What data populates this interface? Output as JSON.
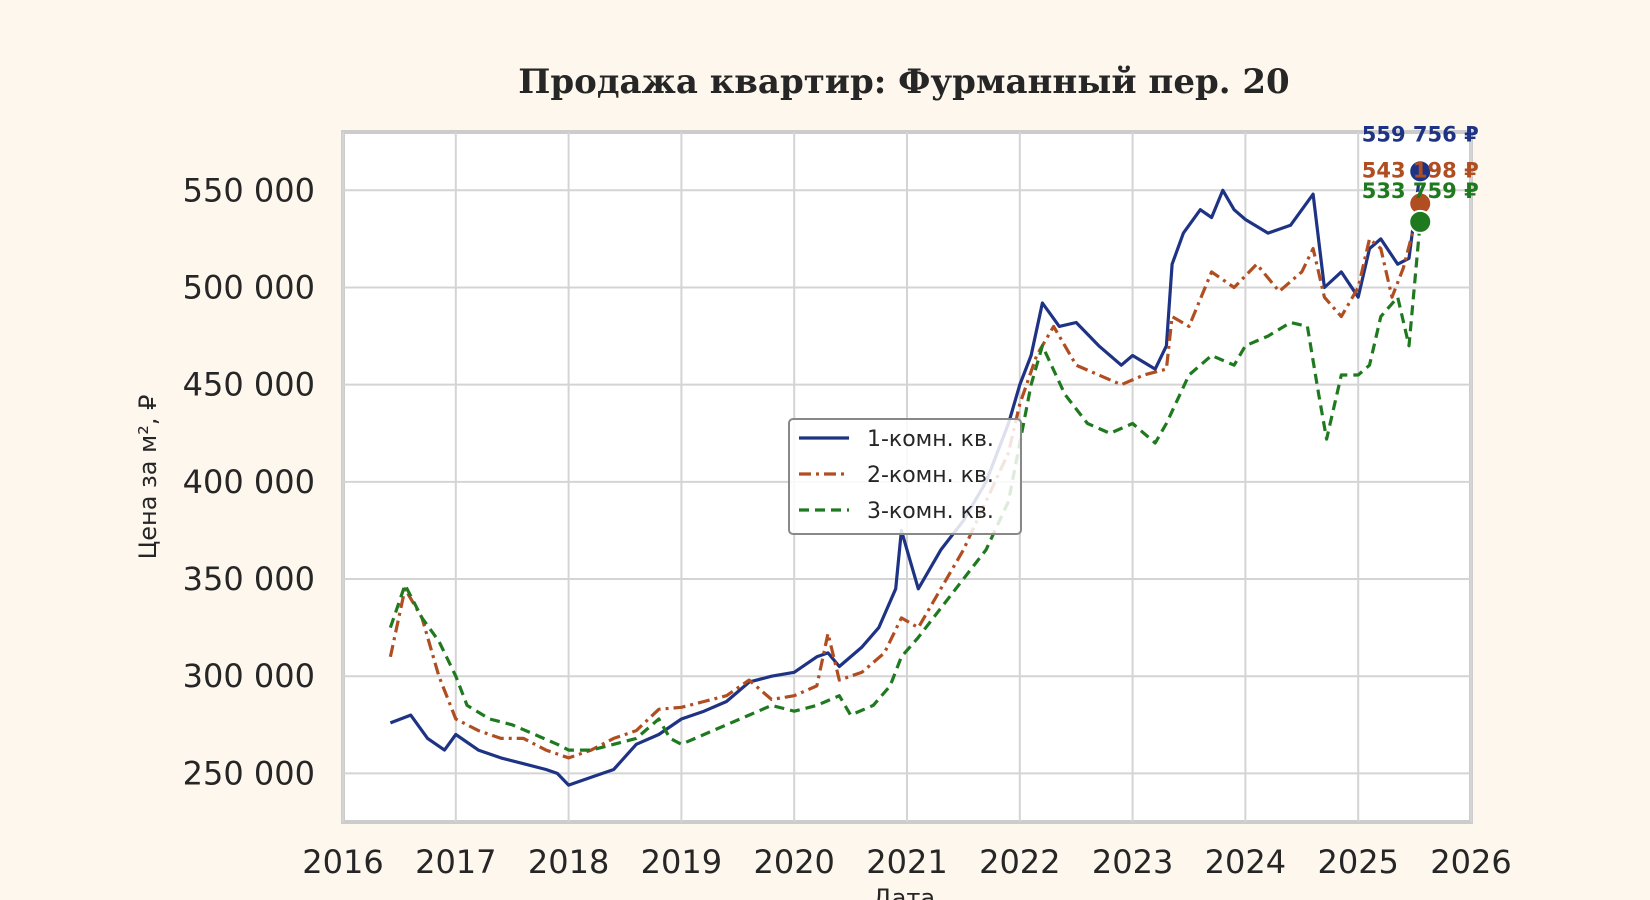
{
  "chart_data": {
    "type": "line",
    "title": "Продажа квартир: Фурманный пер. 20",
    "xlabel": "Дата",
    "ylabel": "Цена за м², ₽",
    "xlim": [
      2016.0,
      2026.0
    ],
    "ylim": [
      225000,
      580000
    ],
    "x_ticks": [
      2016,
      2017,
      2018,
      2019,
      2020,
      2021,
      2022,
      2023,
      2024,
      2025,
      2026
    ],
    "y_ticks": [
      250000,
      300000,
      350000,
      400000,
      450000,
      500000,
      550000
    ],
    "y_tick_labels": [
      "250 000",
      "300 000",
      "350 000",
      "400 000",
      "450 000",
      "500 000",
      "550 000"
    ],
    "grid": true,
    "legend_position": "center",
    "series": [
      {
        "name": "1-комн. кв.",
        "color": "#1f3385",
        "dash": "solid",
        "end_value": 559756,
        "end_label": "559 756 ₽",
        "x": [
          2016.42,
          2016.6,
          2016.75,
          2016.9,
          2017.0,
          2017.2,
          2017.4,
          2017.6,
          2017.8,
          2017.9,
          2018.0,
          2018.2,
          2018.4,
          2018.6,
          2018.8,
          2019.0,
          2019.2,
          2019.4,
          2019.6,
          2019.8,
          2020.0,
          2020.2,
          2020.3,
          2020.4,
          2020.6,
          2020.75,
          2020.9,
          2020.95,
          2021.1,
          2021.3,
          2021.5,
          2021.7,
          2021.9,
          2022.0,
          2022.1,
          2022.2,
          2022.35,
          2022.5,
          2022.7,
          2022.9,
          2023.0,
          2023.2,
          2023.3,
          2023.35,
          2023.45,
          2023.6,
          2023.7,
          2023.8,
          2023.9,
          2024.0,
          2024.2,
          2024.4,
          2024.6,
          2024.7,
          2024.85,
          2025.0,
          2025.1,
          2025.2,
          2025.35,
          2025.45,
          2025.55
        ],
        "y": [
          276000,
          280000,
          268000,
          262000,
          270000,
          262000,
          258000,
          255000,
          252000,
          250000,
          244000,
          248000,
          252000,
          265000,
          270000,
          278000,
          282000,
          287000,
          297000,
          300000,
          302000,
          310000,
          312000,
          305000,
          315000,
          325000,
          345000,
          375000,
          345000,
          365000,
          380000,
          400000,
          430000,
          450000,
          465000,
          492000,
          480000,
          482000,
          470000,
          460000,
          465000,
          458000,
          470000,
          512000,
          528000,
          540000,
          536000,
          550000,
          540000,
          535000,
          528000,
          532000,
          548000,
          500000,
          508000,
          495000,
          520000,
          525000,
          512000,
          515000,
          559756
        ]
      },
      {
        "name": "2-комн. кв.",
        "color": "#b04e22",
        "dash": "dashdot",
        "end_value": 543198,
        "end_label": "543 198 ₽",
        "x": [
          2016.42,
          2016.55,
          2016.7,
          2016.85,
          2017.0,
          2017.2,
          2017.4,
          2017.6,
          2017.8,
          2018.0,
          2018.2,
          2018.4,
          2018.6,
          2018.8,
          2019.0,
          2019.2,
          2019.4,
          2019.6,
          2019.8,
          2020.0,
          2020.2,
          2020.3,
          2020.4,
          2020.6,
          2020.8,
          2020.95,
          2021.1,
          2021.3,
          2021.5,
          2021.7,
          2021.9,
          2022.0,
          2022.15,
          2022.3,
          2022.5,
          2022.7,
          2022.9,
          2023.1,
          2023.3,
          2023.35,
          2023.5,
          2023.7,
          2023.9,
          2024.1,
          2024.3,
          2024.5,
          2024.6,
          2024.7,
          2024.85,
          2025.0,
          2025.1,
          2025.2,
          2025.3,
          2025.4,
          2025.55
        ],
        "y": [
          310000,
          345000,
          330000,
          300000,
          278000,
          272000,
          268000,
          268000,
          262000,
          258000,
          262000,
          268000,
          272000,
          283000,
          284000,
          287000,
          290000,
          298000,
          288000,
          290000,
          295000,
          322000,
          298000,
          302000,
          312000,
          330000,
          325000,
          345000,
          365000,
          390000,
          415000,
          440000,
          465000,
          480000,
          460000,
          455000,
          450000,
          455000,
          458000,
          485000,
          480000,
          508000,
          500000,
          512000,
          498000,
          508000,
          520000,
          495000,
          485000,
          500000,
          525000,
          520000,
          495000,
          510000,
          543198
        ]
      },
      {
        "name": "3-комн. кв.",
        "color": "#1f7a1f",
        "dash": "dashed",
        "end_value": 533759,
        "end_label": "533 759 ₽",
        "x": [
          2016.42,
          2016.55,
          2016.7,
          2016.85,
          2017.0,
          2017.1,
          2017.3,
          2017.5,
          2017.7,
          2017.9,
          2018.0,
          2018.2,
          2018.4,
          2018.6,
          2018.8,
          2018.9,
          2019.0,
          2019.2,
          2019.4,
          2019.6,
          2019.8,
          2020.0,
          2020.2,
          2020.4,
          2020.5,
          2020.7,
          2020.85,
          2020.95,
          2021.1,
          2021.3,
          2021.5,
          2021.7,
          2021.9,
          2022.0,
          2022.1,
          2022.2,
          2022.4,
          2022.6,
          2022.8,
          2023.0,
          2023.2,
          2023.3,
          2023.5,
          2023.7,
          2023.9,
          2024.0,
          2024.2,
          2024.4,
          2024.55,
          2024.65,
          2024.72,
          2024.85,
          2025.0,
          2025.1,
          2025.2,
          2025.35,
          2025.45,
          2025.55
        ],
        "y": [
          325000,
          347000,
          330000,
          318000,
          300000,
          285000,
          278000,
          275000,
          270000,
          265000,
          262000,
          262000,
          265000,
          268000,
          278000,
          268000,
          265000,
          270000,
          275000,
          280000,
          285000,
          282000,
          285000,
          290000,
          280000,
          285000,
          295000,
          310000,
          320000,
          335000,
          350000,
          365000,
          390000,
          420000,
          450000,
          470000,
          445000,
          430000,
          425000,
          430000,
          420000,
          430000,
          455000,
          465000,
          460000,
          470000,
          475000,
          482000,
          480000,
          445000,
          422000,
          455000,
          455000,
          460000,
          485000,
          495000,
          470000,
          533759
        ]
      }
    ]
  }
}
